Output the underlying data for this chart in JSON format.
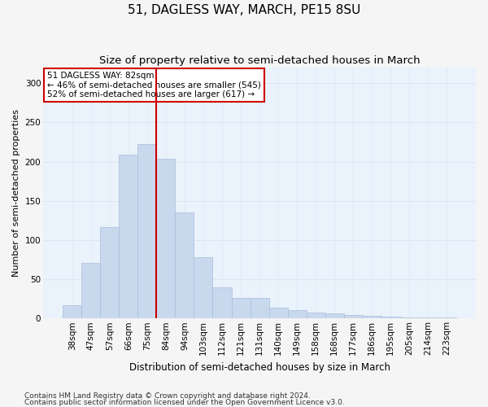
{
  "title": "51, DAGLESS WAY, MARCH, PE15 8SU",
  "subtitle": "Size of property relative to semi-detached houses in March",
  "xlabel": "Distribution of semi-detached houses by size in March",
  "ylabel": "Number of semi-detached properties",
  "footnote1": "Contains HM Land Registry data © Crown copyright and database right 2024.",
  "footnote2": "Contains public sector information licensed under the Open Government Licence v3.0.",
  "categories": [
    "38sqm",
    "47sqm",
    "57sqm",
    "66sqm",
    "75sqm",
    "84sqm",
    "94sqm",
    "103sqm",
    "112sqm",
    "121sqm",
    "131sqm",
    "140sqm",
    "149sqm",
    "158sqm",
    "168sqm",
    "177sqm",
    "186sqm",
    "195sqm",
    "205sqm",
    "214sqm",
    "223sqm"
  ],
  "values": [
    17,
    71,
    117,
    209,
    222,
    204,
    135,
    78,
    40,
    26,
    26,
    14,
    11,
    8,
    7,
    4,
    3,
    2,
    1,
    1,
    1
  ],
  "bar_color": "#c8d9ee",
  "bar_edge_color": "#aabdd8",
  "vline_x_index": 5,
  "vline_color": "#cc0000",
  "annotation_title": "51 DAGLESS WAY: 82sqm",
  "annotation_line1": "← 46% of semi-detached houses are smaller (545)",
  "annotation_line2": "52% of semi-detached houses are larger (617) →",
  "annotation_box_edge": "#cc0000",
  "ylim": [
    0,
    320
  ],
  "yticks": [
    0,
    50,
    100,
    150,
    200,
    250,
    300
  ],
  "grid_color": "#d8e4f0",
  "bg_color": "#eaf2fb",
  "fig_bg_color": "#f5f5f5",
  "title_fontsize": 11,
  "subtitle_fontsize": 9.5,
  "xlabel_fontsize": 8.5,
  "ylabel_fontsize": 8,
  "tick_fontsize": 7.5,
  "annotation_fontsize": 7.5,
  "footnote_fontsize": 6.5
}
